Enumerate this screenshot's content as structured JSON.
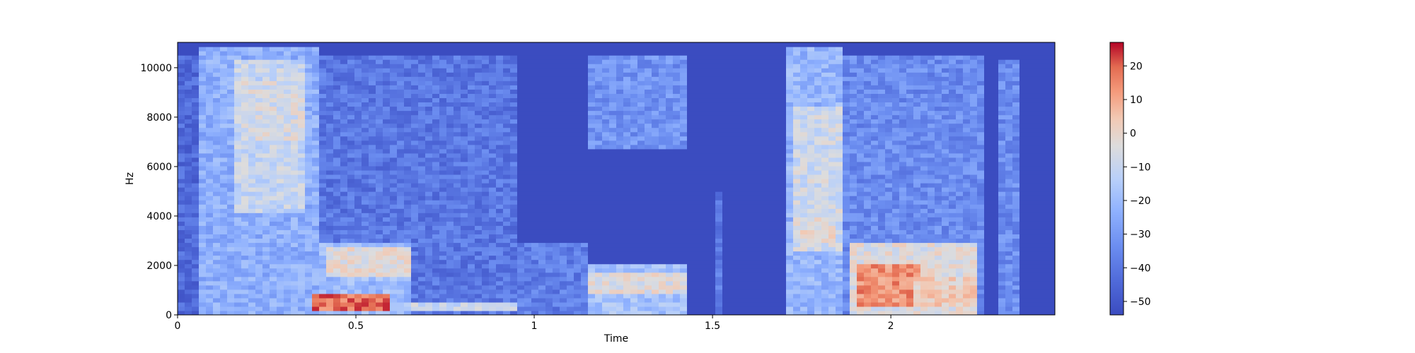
{
  "chart_data": {
    "type": "heatmap",
    "title": "",
    "xlabel": "Time",
    "ylabel": "Hz",
    "xlim": [
      0,
      2.46
    ],
    "ylim": [
      0,
      11025
    ],
    "x_ticks": [
      0,
      0.5,
      1,
      1.5,
      2
    ],
    "x_tick_labels": [
      "0",
      "0.5",
      "1",
      "1.5",
      "2"
    ],
    "y_ticks": [
      0,
      2000,
      4000,
      6000,
      8000,
      10000
    ],
    "y_tick_labels": [
      "0",
      "2000",
      "4000",
      "6000",
      "8000",
      "10000"
    ],
    "colorbar": {
      "range": [
        -54,
        27
      ],
      "ticks": [
        -50,
        -40,
        -30,
        -20,
        -10,
        0,
        10,
        20
      ],
      "tick_labels": [
        "−50",
        "−40",
        "−30",
        "−20",
        "−10",
        "0",
        "10",
        "20"
      ],
      "colormap": "coolwarm",
      "color_low": "#3b4cc0",
      "color_mid": "#dddcdc",
      "color_high": "#b40426"
    },
    "grid": false,
    "energy_regions_db": [
      {
        "t_start": 0.0,
        "t_end": 0.05,
        "f_start": 0,
        "f_end": 10500,
        "level_db": -44
      },
      {
        "t_start": 0.05,
        "t_end": 0.39,
        "f_start": 0,
        "f_end": 10800,
        "level_db": -24
      },
      {
        "t_start": 0.15,
        "t_end": 0.36,
        "f_start": 4200,
        "f_end": 10300,
        "level_db": -10
      },
      {
        "t_start": 0.18,
        "t_end": 0.35,
        "f_start": 7000,
        "f_end": 9500,
        "level_db": -6
      },
      {
        "t_start": 0.39,
        "t_end": 0.95,
        "f_start": 0,
        "f_end": 10500,
        "level_db": -40
      },
      {
        "t_start": 0.39,
        "t_end": 0.65,
        "f_start": 0,
        "f_end": 3000,
        "level_db": -20
      },
      {
        "t_start": 0.37,
        "t_end": 0.6,
        "f_start": 200,
        "f_end": 800,
        "level_db": 18
      },
      {
        "t_start": 0.42,
        "t_end": 0.65,
        "f_start": 1500,
        "f_end": 2700,
        "level_db": -2
      },
      {
        "t_start": 0.6,
        "t_end": 1.0,
        "f_start": 200,
        "f_end": 600,
        "level_db": -10
      },
      {
        "t_start": 0.95,
        "t_end": 1.15,
        "f_start": 0,
        "f_end": 3000,
        "level_db": -38
      },
      {
        "t_start": 1.15,
        "t_end": 1.42,
        "f_start": 0,
        "f_end": 2000,
        "level_db": -18
      },
      {
        "t_start": 1.15,
        "t_end": 1.42,
        "f_start": 900,
        "f_end": 1800,
        "level_db": -4
      },
      {
        "t_start": 1.15,
        "t_end": 1.42,
        "f_start": 6800,
        "f_end": 10500,
        "level_db": -32
      },
      {
        "t_start": 1.42,
        "t_end": 1.68,
        "f_start": 0,
        "f_end": 11025,
        "level_db": -54
      },
      {
        "t_start": 1.5,
        "t_end": 1.53,
        "f_start": 0,
        "f_end": 5000,
        "level_db": -40
      },
      {
        "t_start": 1.7,
        "t_end": 1.87,
        "f_start": 0,
        "f_end": 10800,
        "level_db": -22
      },
      {
        "t_start": 1.72,
        "t_end": 1.86,
        "f_start": 2500,
        "f_end": 8500,
        "level_db": -8
      },
      {
        "t_start": 1.72,
        "t_end": 1.84,
        "f_start": 3000,
        "f_end": 4000,
        "level_db": -2
      },
      {
        "t_start": 1.87,
        "t_end": 2.27,
        "f_start": 0,
        "f_end": 10500,
        "level_db": -34
      },
      {
        "t_start": 1.88,
        "t_end": 2.25,
        "f_start": 0,
        "f_end": 2900,
        "level_db": -4
      },
      {
        "t_start": 1.9,
        "t_end": 2.08,
        "f_start": 300,
        "f_end": 2000,
        "level_db": 14
      },
      {
        "t_start": 2.07,
        "t_end": 2.25,
        "f_start": 400,
        "f_end": 1500,
        "level_db": 2
      },
      {
        "t_start": 2.27,
        "t_end": 2.3,
        "f_start": 0,
        "f_end": 11025,
        "level_db": -54
      },
      {
        "t_start": 2.3,
        "t_end": 2.37,
        "f_start": 0,
        "f_end": 10300,
        "level_db": -34
      },
      {
        "t_start": 2.37,
        "t_end": 2.46,
        "f_start": 0,
        "f_end": 11025,
        "level_db": -54
      }
    ]
  }
}
